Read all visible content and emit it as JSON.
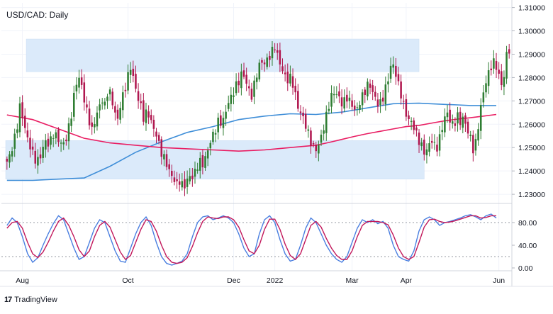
{
  "title": "USD/CAD: Daily",
  "brand": "TradingView",
  "colors": {
    "up": "#2e7d32",
    "down": "#b0174f",
    "ma_fast": "#e91e63",
    "ma_slow": "#3f8ed8",
    "zone": "#dbeafa",
    "stoch_k": "#4a7fe0",
    "stoch_d": "#c2185b",
    "grid": "#e0e3eb"
  },
  "chart_data": [
    {
      "type": "candlestick",
      "title": "USD/CAD: Daily",
      "ylim": [
        1.227,
        1.312
      ],
      "y_ticks": [
        "1.23000",
        "1.24000",
        "1.25000",
        "1.26000",
        "1.27000",
        "1.28000",
        "1.29000",
        "1.30000",
        "1.31000"
      ],
      "x_ticks": [
        "Aug",
        "Oct",
        "Dec",
        "2022",
        "Mar",
        "Apr",
        "Jun"
      ],
      "x_tick_index": [
        6,
        47,
        88,
        104,
        134,
        155,
        191
      ],
      "close_path": [
        1.244,
        1.247,
        1.252,
        1.258,
        1.268,
        1.262,
        1.255,
        1.251,
        1.247,
        1.244,
        1.245,
        1.25,
        1.253,
        1.251,
        1.256,
        1.255,
        1.253,
        1.251,
        1.253,
        1.259,
        1.266,
        1.277,
        1.28,
        1.276,
        1.268,
        1.263,
        1.257,
        1.262,
        1.266,
        1.271,
        1.268,
        1.275,
        1.272,
        1.265,
        1.262,
        1.27,
        1.274,
        1.28,
        1.285,
        1.278,
        1.272,
        1.268,
        1.262,
        1.266,
        1.262,
        1.258,
        1.255,
        1.249,
        1.246,
        1.243,
        1.239,
        1.237,
        1.234,
        1.236,
        1.233,
        1.235,
        1.238,
        1.237,
        1.241,
        1.244,
        1.243,
        1.246,
        1.251,
        1.255,
        1.258,
        1.262,
        1.26,
        1.265,
        1.27,
        1.272,
        1.276,
        1.278,
        1.282,
        1.28,
        1.275,
        1.272,
        1.278,
        1.284,
        1.287,
        1.286,
        1.288,
        1.29,
        1.294,
        1.289,
        1.285,
        1.281,
        1.279,
        1.28,
        1.276,
        1.268,
        1.265,
        1.262,
        1.258,
        1.253,
        1.25,
        1.249,
        1.253,
        1.258,
        1.264,
        1.27,
        1.274,
        1.273,
        1.271,
        1.268,
        1.272,
        1.27,
        1.268,
        1.265,
        1.269,
        1.272,
        1.275,
        1.278,
        1.274,
        1.271,
        1.268,
        1.27,
        1.275,
        1.28,
        1.287,
        1.283,
        1.277,
        1.272,
        1.266,
        1.262,
        1.261,
        1.258,
        1.254,
        1.251,
        1.248,
        1.249,
        1.254,
        1.251,
        1.25,
        1.256,
        1.262,
        1.265,
        1.261,
        1.259,
        1.264,
        1.261,
        1.263,
        1.258,
        1.255,
        1.249,
        1.253,
        1.265,
        1.273,
        1.279,
        1.283,
        1.287,
        1.285,
        1.28,
        1.275,
        1.289,
        1.292
      ],
      "ma_fast_path": [
        1.264,
        1.262,
        1.258,
        1.254,
        1.252,
        1.251,
        1.25,
        1.2495,
        1.249,
        1.2485,
        1.249,
        1.25,
        1.251,
        1.2522,
        1.2535,
        1.2548,
        1.256,
        1.257,
        1.258,
        1.259,
        1.2595,
        1.2605,
        1.2615,
        1.2622,
        1.2628,
        1.2635,
        1.2642
      ],
      "ma_fast_idx": [
        0,
        10,
        20,
        30,
        40,
        50,
        60,
        70,
        80,
        90,
        100,
        110,
        120,
        125,
        130,
        135,
        140,
        145,
        150,
        155,
        160,
        165,
        170,
        175,
        180,
        185,
        190
      ],
      "ma_slow_path": [
        1.236,
        1.236,
        1.2365,
        1.237,
        1.242,
        1.248,
        1.2525,
        1.2565,
        1.259,
        1.262,
        1.2635,
        1.2645,
        1.2642,
        1.2652,
        1.267,
        1.2688,
        1.269,
        1.2685,
        1.2683,
        1.268,
        1.268
      ],
      "ma_slow_idx": [
        0,
        10,
        20,
        30,
        40,
        50,
        60,
        70,
        80,
        90,
        100,
        110,
        120,
        130,
        140,
        150,
        160,
        170,
        175,
        180,
        190
      ],
      "zones": [
        {
          "from_index": 8,
          "to_index": 160,
          "low": 1.2825,
          "high": 1.2965
        },
        {
          "from_index": 0,
          "to_index": 162,
          "low": 1.2365,
          "high": 1.253
        }
      ]
    },
    {
      "type": "line",
      "title": "Stochastic",
      "ylim": [
        0,
        100
      ],
      "y_ticks": [
        "80.00",
        "40.00",
        "0.00"
      ],
      "y_tick_values": [
        80,
        40,
        0
      ],
      "dashed_levels": [
        80,
        20
      ],
      "series": [
        {
          "key": "k",
          "values": [
            75,
            88,
            80,
            55,
            25,
            10,
            18,
            40,
            60,
            78,
            92,
            85,
            60,
            35,
            15,
            20,
            45,
            70,
            85,
            80,
            55,
            30,
            12,
            10,
            35,
            60,
            80,
            90,
            75,
            45,
            20,
            8,
            5,
            8,
            12,
            25,
            55,
            80,
            90,
            92,
            85,
            88,
            92,
            88,
            80,
            60,
            35,
            20,
            25,
            60,
            85,
            92,
            80,
            50,
            25,
            12,
            15,
            40,
            70,
            88,
            80,
            60,
            40,
            25,
            15,
            10,
            20,
            45,
            70,
            85,
            80,
            85,
            78,
            82,
            70,
            40,
            20,
            15,
            12,
            30,
            65,
            85,
            90,
            85,
            75,
            80,
            82,
            85,
            88,
            92,
            94,
            90,
            85,
            92,
            95,
            88
          ]
        },
        {
          "key": "d",
          "values": [
            70,
            80,
            82,
            70,
            45,
            25,
            18,
            28,
            45,
            65,
            82,
            88,
            75,
            55,
            32,
            20,
            30,
            55,
            75,
            82,
            72,
            50,
            28,
            15,
            22,
            45,
            68,
            85,
            82,
            65,
            40,
            20,
            10,
            8,
            10,
            18,
            38,
            62,
            82,
            90,
            88,
            87,
            90,
            90,
            85,
            72,
            50,
            30,
            25,
            40,
            68,
            86,
            86,
            68,
            42,
            22,
            15,
            25,
            50,
            75,
            82,
            72,
            52,
            35,
            22,
            15,
            15,
            30,
            55,
            75,
            82,
            82,
            82,
            80,
            76,
            58,
            35,
            20,
            15,
            20,
            45,
            72,
            85,
            86,
            82,
            80,
            81,
            83,
            86,
            89,
            92,
            92,
            88,
            89,
            92,
            92
          ]
        }
      ]
    }
  ]
}
